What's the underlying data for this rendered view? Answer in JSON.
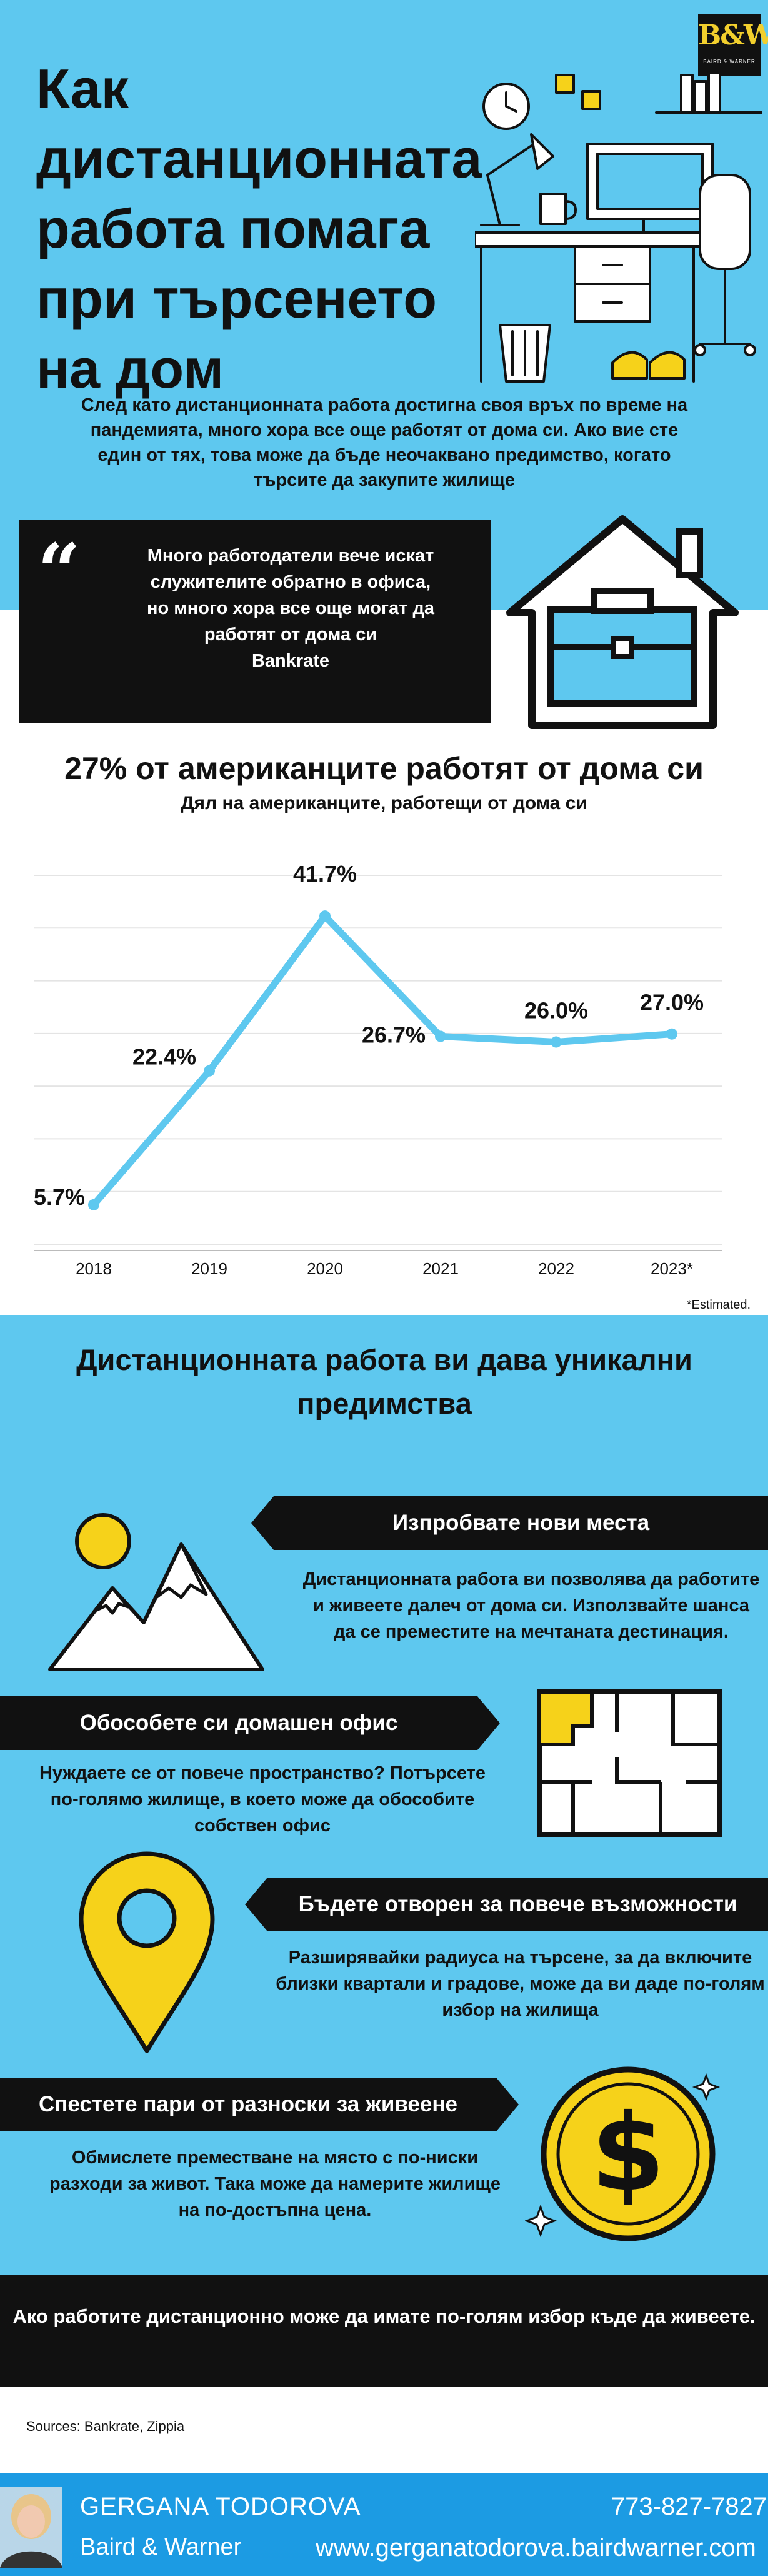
{
  "brand": {
    "logo_mark": "B&W",
    "logo_sub": "BAIRD & WARNER"
  },
  "header": {
    "title": "Как дистанционната работа помага при търсенето на дом",
    "intro": "След като дистанционната работа достигна своя връх по време на пандемията, много хора все още работят от дома си. Ако вие сте един от тях, това може да бъде неочаквано предимство, когато търсите да закупите жилище"
  },
  "quote": {
    "mark": "“",
    "text": "Много работодатели вече искат служителите обратно в офиса, но много хора все още могат да работят от дома си",
    "source": "Bankrate"
  },
  "chart_data": {
    "type": "line",
    "title": "27% от американците работят от дома си",
    "subtitle": "Дял на американците, работещи от дома си",
    "categories": [
      "2018",
      "2019",
      "2020",
      "2021",
      "2022",
      "2023*"
    ],
    "values": [
      5.7,
      22.4,
      41.7,
      26.7,
      26.0,
      27.0
    ],
    "data_labels": [
      "5.7%",
      "22.4%",
      "41.7%",
      "26.7%",
      "26.0%",
      "27.0%"
    ],
    "ylim": [
      0,
      46
    ],
    "grid": true,
    "line_color": "#5ec8ef",
    "note": "*Estimated."
  },
  "advantages": {
    "title": "Дистанционната работа ви дава уникални предимства",
    "items": [
      {
        "heading": "Изпробвате нови места",
        "text": "Дистанционната работа ви позволява да работите и живеете далеч от дома си. Използвайте шанса да се преместите на мечтаната дестинация."
      },
      {
        "heading": "Обособете си домашен офис",
        "text": "Нуждаете се от повече пространство? Потърсете по-голямо жилище, в което може да обособите собствен офис"
      },
      {
        "heading": "Бъдете отворен за повече възможности",
        "text": "Разширявайки радиуса на търсене, за да включите близки квартали и градове, може да ви даде по-голям избор на жилища"
      },
      {
        "heading": "Спестете пари от разноски за живеене",
        "text": "Обмислете преместване на място с по-ниски разходи за живот. Така може да намерите жилище на по-достъпна цена."
      }
    ]
  },
  "closing": "Ако работите дистанционно може да имате по-голям избор къде да живеете.",
  "sources": "Sources: Bankrate, Zippia",
  "footer": {
    "name": "GERGANA TODOROVA",
    "company": "Baird & Warner",
    "phone": "773-827-7827",
    "website": "www.gerganatodorova.bairdwarner.com"
  },
  "colors": {
    "sky": "#5ec8ef",
    "black": "#111111",
    "yellow": "#f6d21a",
    "footer_blue": "#1c9be3"
  }
}
